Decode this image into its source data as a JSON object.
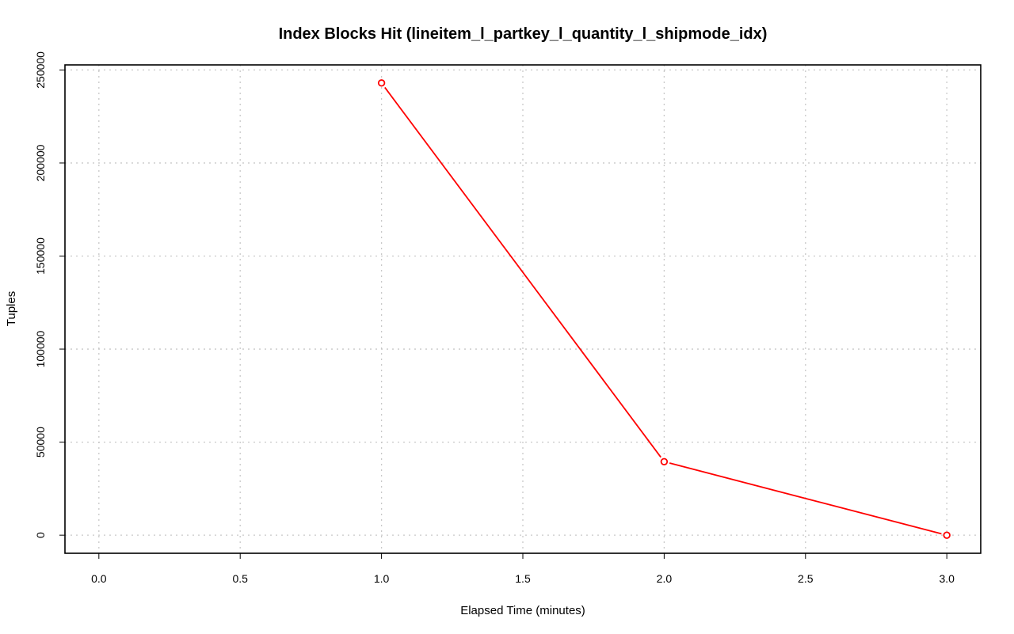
{
  "chart_data": {
    "type": "line",
    "title": "Index Blocks Hit (lineitem_l_partkey_l_quantity_l_shipmode_idx)",
    "xlabel": "Elapsed Time (minutes)",
    "ylabel": "Tuples",
    "xlim": [
      -0.12,
      3.12
    ],
    "ylim": [
      -9720,
      252720
    ],
    "x_ticks": [
      0.0,
      0.5,
      1.0,
      1.5,
      2.0,
      2.5,
      3.0
    ],
    "x_tick_labels": [
      "0.0",
      "0.5",
      "1.0",
      "1.5",
      "2.0",
      "2.5",
      "3.0"
    ],
    "y_ticks": [
      0,
      50000,
      100000,
      150000,
      200000,
      250000
    ],
    "y_tick_labels": [
      "0",
      "50000",
      "100000",
      "150000",
      "200000",
      "250000"
    ],
    "grid": true,
    "series": [
      {
        "color": "#ff0000",
        "marker": "open-circle",
        "x": [
          1.0,
          2.0,
          3.0
        ],
        "y": [
          243000,
          39500,
          0
        ]
      }
    ]
  }
}
